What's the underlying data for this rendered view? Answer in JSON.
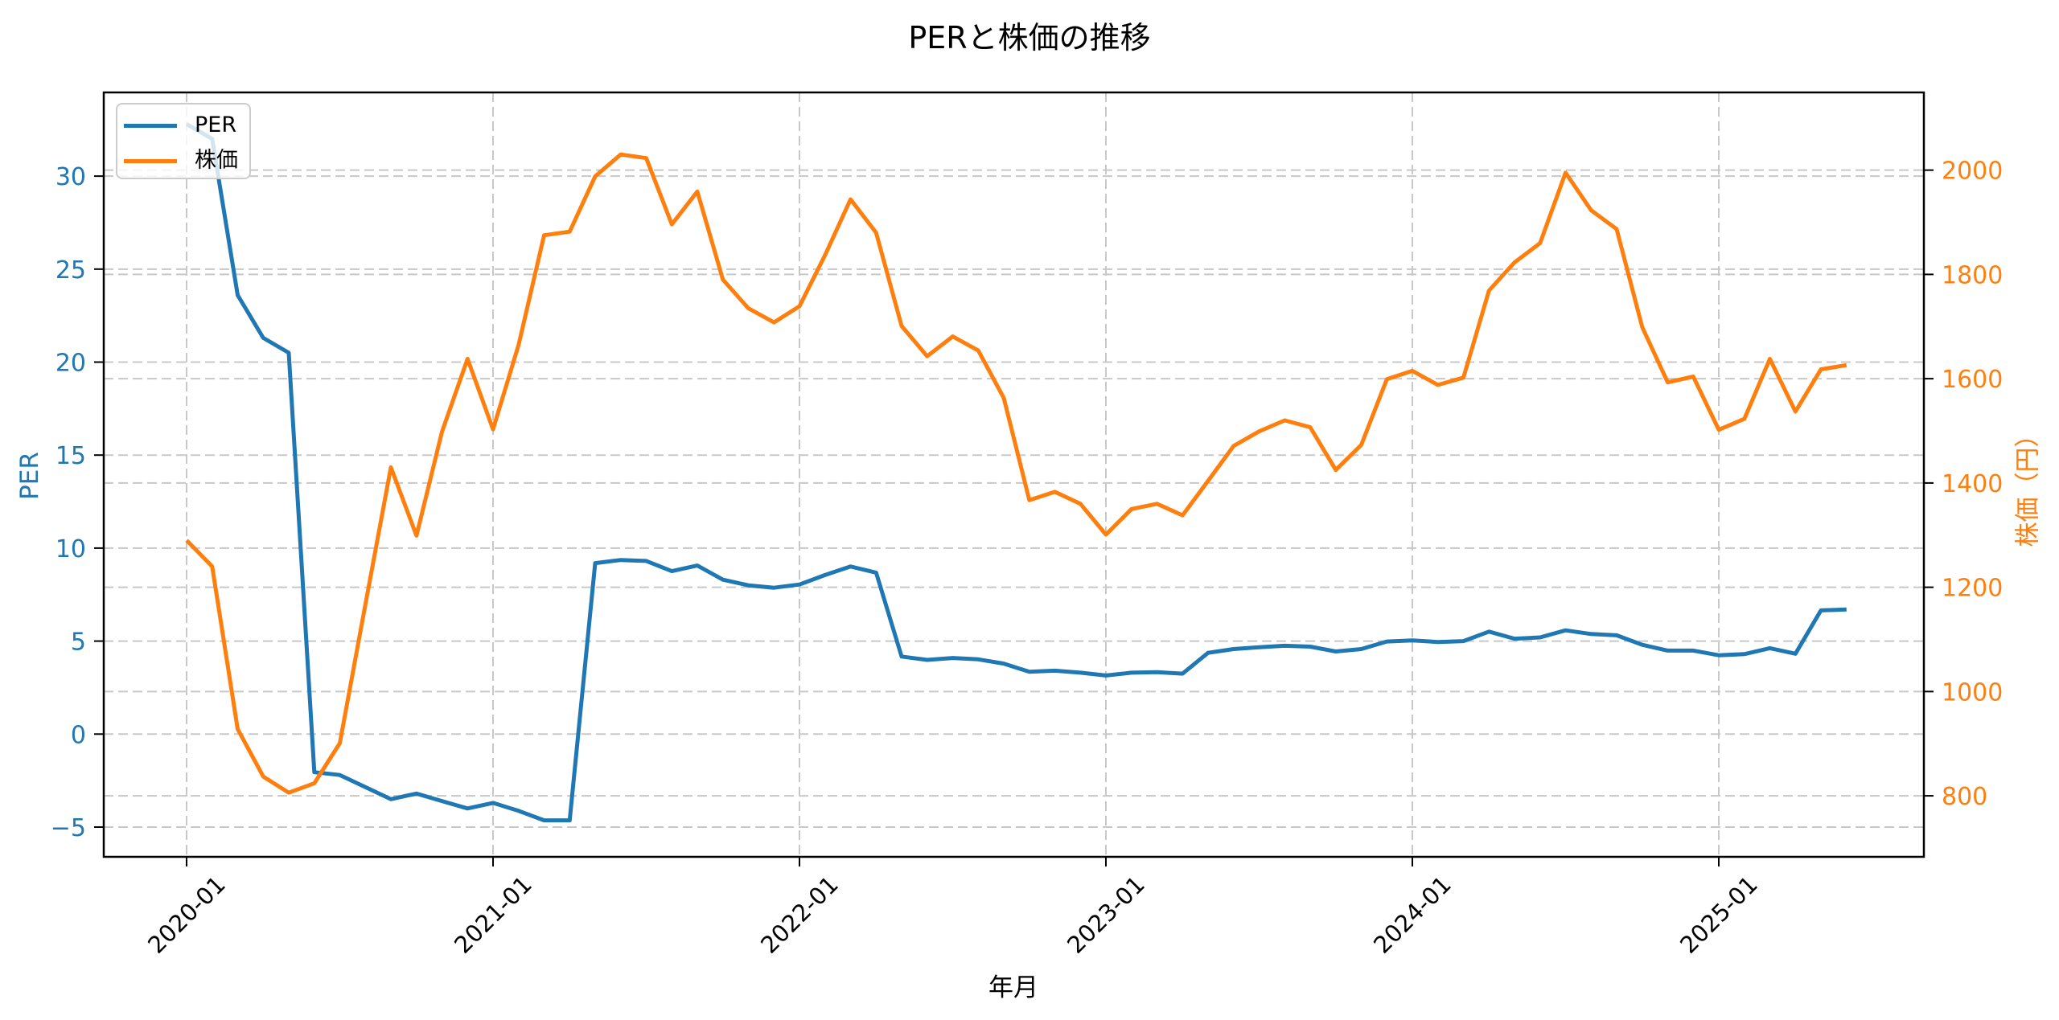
{
  "figure": {
    "title": "PERと株価の推移",
    "xlabel": "年月",
    "ylabel_left": "PER",
    "ylabel_right": "株価（円）",
    "colors": {
      "per": "#1f77b4",
      "price": "#ff7f0e",
      "grid": "#c8c8c8",
      "axis": "#000000"
    }
  },
  "legend": {
    "position": "upper left",
    "items": [
      {
        "label": "PER",
        "color": "#1f77b4"
      },
      {
        "label": "株価",
        "color": "#ff7f0e"
      }
    ]
  },
  "chart_data": {
    "type": "line",
    "title": "PERと株価の推移",
    "xlabel": "年月",
    "ylabel": "PER",
    "ylabel_secondary": "株価（円）",
    "x_tick_labels": [
      "2020-01",
      "2021-01",
      "2022-01",
      "2023-01",
      "2024-01",
      "2025-01"
    ],
    "y_ticks_left": [
      -5,
      0,
      5,
      10,
      15,
      20,
      25,
      30
    ],
    "y_ticks_right": [
      800,
      1000,
      1200,
      1400,
      1600,
      1800,
      2000
    ],
    "ylim": [
      -6.6,
      34.5
    ],
    "ylim_secondary": [
      683,
      2149
    ],
    "grid": true,
    "legend_position": "upper left",
    "x": [
      "2020-01",
      "2020-02",
      "2020-03",
      "2020-04",
      "2020-05",
      "2020-06",
      "2020-07",
      "2020-08",
      "2020-09",
      "2020-10",
      "2020-11",
      "2020-12",
      "2021-01",
      "2021-02",
      "2021-03",
      "2021-04",
      "2021-05",
      "2021-06",
      "2021-07",
      "2021-08",
      "2021-09",
      "2021-10",
      "2021-11",
      "2021-12",
      "2022-01",
      "2022-02",
      "2022-03",
      "2022-04",
      "2022-05",
      "2022-06",
      "2022-07",
      "2022-08",
      "2022-09",
      "2022-10",
      "2022-11",
      "2022-12",
      "2023-01",
      "2023-02",
      "2023-03",
      "2023-04",
      "2023-05",
      "2023-06",
      "2023-07",
      "2023-08",
      "2023-09",
      "2023-10",
      "2023-11",
      "2023-12",
      "2024-01",
      "2024-02",
      "2024-03",
      "2024-04",
      "2024-05",
      "2024-06",
      "2024-07",
      "2024-08",
      "2024-09",
      "2024-10",
      "2024-11",
      "2024-12",
      "2025-01",
      "2025-02",
      "2025-03",
      "2025-04",
      "2025-05",
      "2025-06"
    ],
    "series": [
      {
        "name": "PER",
        "axis": "left",
        "color": "#1f77b4",
        "values": [
          32.8,
          32.0,
          23.6,
          21.3,
          20.5,
          -2.05,
          -2.2,
          -2.85,
          -3.5,
          -3.2,
          -3.6,
          -4.0,
          -3.7,
          -4.13,
          -4.64,
          -4.64,
          9.19,
          9.36,
          9.31,
          8.76,
          9.06,
          8.3,
          8.0,
          7.87,
          8.04,
          8.55,
          9.01,
          8.68,
          4.17,
          3.99,
          4.09,
          4.02,
          3.79,
          3.35,
          3.41,
          3.3,
          3.15,
          3.3,
          3.33,
          3.25,
          4.37,
          4.57,
          4.67,
          4.75,
          4.7,
          4.44,
          4.57,
          4.98,
          5.04,
          4.95,
          5.0,
          5.51,
          5.13,
          5.2,
          5.58,
          5.38,
          5.31,
          4.8,
          4.49,
          4.49,
          4.24,
          4.3,
          4.62,
          4.32,
          6.65,
          6.7
        ]
      },
      {
        "name": "株価",
        "axis": "right",
        "color": "#ff7f0e",
        "values": [
          1290,
          1240,
          928,
          837,
          806,
          824,
          901,
          1167,
          1430,
          1299,
          1498,
          1638,
          1503,
          1665,
          1875,
          1882,
          1988,
          2030,
          2023,
          1896,
          1959,
          1790,
          1735,
          1708,
          1739,
          1837,
          1944,
          1880,
          1701,
          1643,
          1681,
          1654,
          1563,
          1367,
          1383,
          1360,
          1301,
          1350,
          1360,
          1338,
          1404,
          1471,
          1499,
          1520,
          1507,
          1425,
          1473,
          1599,
          1615,
          1588,
          1602,
          1769,
          1823,
          1860,
          1995,
          1923,
          1887,
          1699,
          1593,
          1604,
          1502,
          1523,
          1638,
          1537,
          1618,
          1626
        ]
      }
    ]
  }
}
